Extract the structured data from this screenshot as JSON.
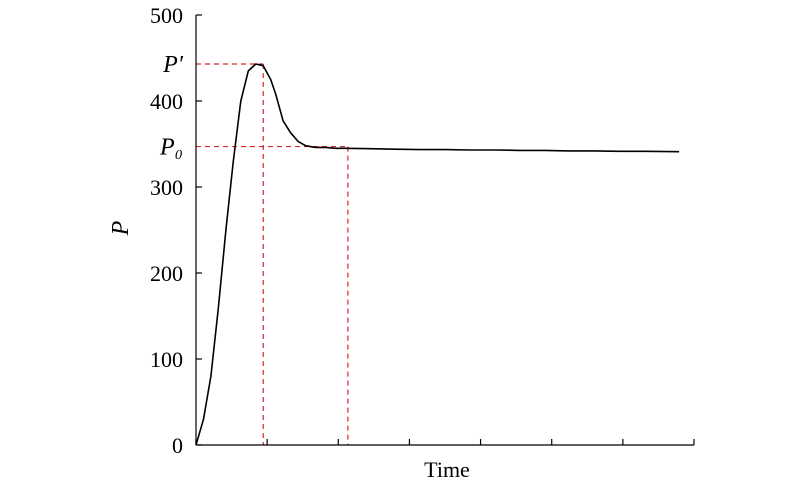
{
  "chart_data": {
    "type": "line",
    "title": "",
    "xlabel": "Time",
    "ylabel": "P",
    "ylim": [
      0,
      500
    ],
    "yticks": [
      0,
      100,
      200,
      300,
      400,
      500
    ],
    "xlim": [
      0,
      100
    ],
    "grid": false,
    "series": [
      {
        "color": "#000000",
        "x": [
          0,
          1.5,
          3,
          4.5,
          6,
          7.5,
          9,
          10.5,
          12,
          13.5,
          15,
          16,
          17.5,
          19,
          20.5,
          22,
          24,
          26,
          28,
          30,
          35,
          40,
          45,
          50,
          55,
          60,
          65,
          70,
          75,
          80,
          85,
          90,
          97
        ],
        "y": [
          0,
          30,
          80,
          160,
          250,
          330,
          400,
          435,
          443,
          441,
          425,
          408,
          377,
          363,
          353,
          348,
          346,
          346,
          345,
          345,
          344.5,
          344,
          343.5,
          343.5,
          343,
          343,
          342.5,
          342.5,
          342,
          342,
          341.5,
          341.5,
          341
        ]
      }
    ],
    "annotations": [
      {
        "label": "P′",
        "y": 443,
        "x": 13.5,
        "color": "#d9242b"
      },
      {
        "label": "P₀",
        "y": 347,
        "x": 30.5,
        "color": "#d9242b"
      }
    ]
  }
}
